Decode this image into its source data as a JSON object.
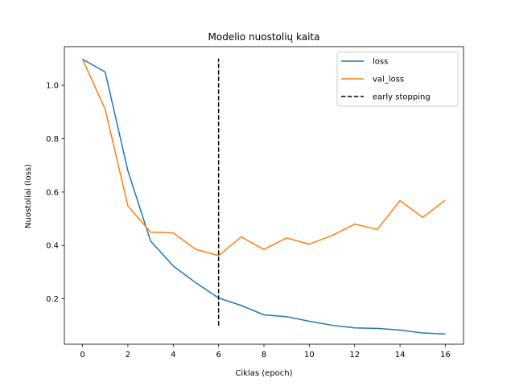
{
  "chart_data": {
    "type": "line",
    "title": "Modelio nuostolių kaita",
    "xlabel": "Ciklas (epoch)",
    "ylabel": "Nuostoliai (loss)",
    "xlim": [
      -0.8,
      16.8
    ],
    "ylim": [
      0.03,
      1.145
    ],
    "xticks": [
      0,
      2,
      4,
      6,
      8,
      10,
      12,
      14,
      16
    ],
    "yticks": [
      0.2,
      0.4,
      0.6,
      0.8,
      1.0
    ],
    "ytick_labels": [
      "0.2",
      "0.4",
      "0.6",
      "0.8",
      "1.0"
    ],
    "grid": false,
    "legend_position": "top-right",
    "x": [
      0,
      1,
      2,
      3,
      4,
      5,
      6,
      7,
      8,
      9,
      10,
      11,
      12,
      13,
      14,
      15,
      16
    ],
    "series": [
      {
        "name": "loss",
        "color": "#1f77b4",
        "values": [
          1.098,
          1.05,
          0.68,
          0.417,
          0.323,
          0.26,
          0.203,
          0.175,
          0.14,
          0.133,
          0.116,
          0.101,
          0.091,
          0.089,
          0.083,
          0.072,
          0.068
        ]
      },
      {
        "name": "val_loss",
        "color": "#ff7f0e",
        "values": [
          1.098,
          0.91,
          0.548,
          0.45,
          0.447,
          0.385,
          0.362,
          0.432,
          0.385,
          0.428,
          0.405,
          0.437,
          0.48,
          0.46,
          0.568,
          0.505,
          0.57
        ]
      }
    ],
    "vline": {
      "name": "early stopping",
      "x": 6,
      "y_range": [
        0.1,
        1.1
      ],
      "color": "#000000",
      "style": "dashed"
    }
  }
}
